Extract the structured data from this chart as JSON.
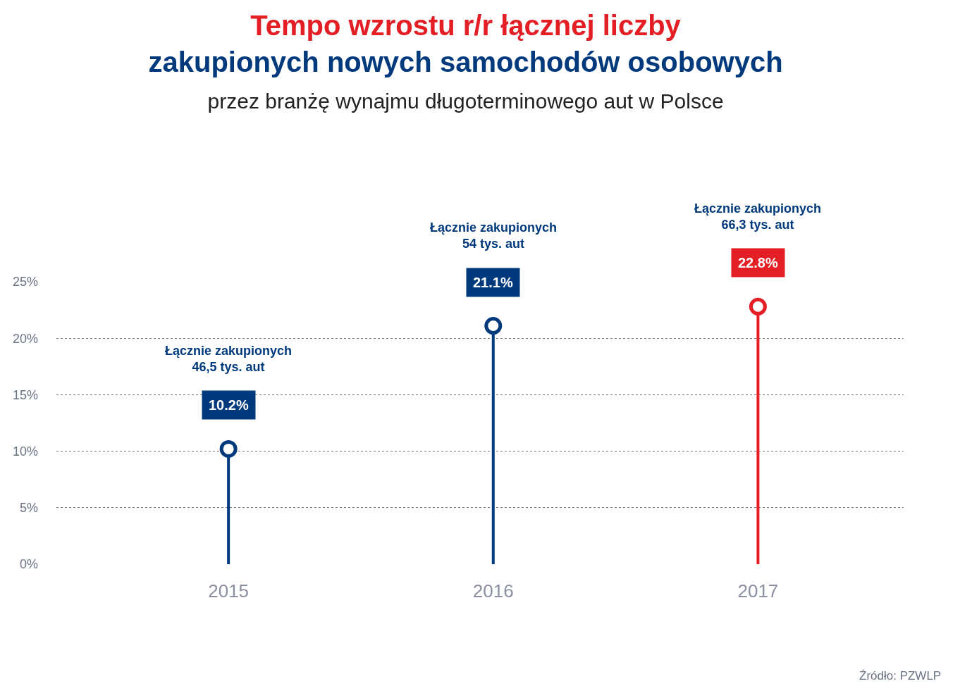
{
  "chart_data": {
    "type": "lollipop",
    "title": "Tempo wzrostu r/r łącznej liczby\nzakupionych nowych samochodów osobowych",
    "subtitle": "przez branżę wynajmu długoterminowego aut w Polsce",
    "categories": [
      "2015",
      "2016",
      "2017"
    ],
    "values": [
      10.2,
      21.1,
      22.8
    ],
    "colors": [
      "#003a7d",
      "#003a7d",
      "#e31e24"
    ],
    "value_labels": [
      "10.2%",
      "21.1%",
      "22.8%"
    ],
    "ylim": [
      0,
      25
    ],
    "yticks": [
      {
        "value": 0,
        "label": "0%"
      },
      {
        "value": 5,
        "label": "5%"
      },
      {
        "value": 10,
        "label": "10%"
      },
      {
        "value": 15,
        "label": "15%"
      },
      {
        "value": 20,
        "label": "20%"
      },
      {
        "value": 25,
        "label": "25%"
      }
    ],
    "grid": "y",
    "annotations": [
      "Łącznie zakupionych\n46,5 tys. aut",
      "Łącznie zakupionych\n54 tys. aut",
      "Łącznie zakupionych\n66,3 tys. aut",
      "Źródło: PZWLP"
    ]
  }
}
